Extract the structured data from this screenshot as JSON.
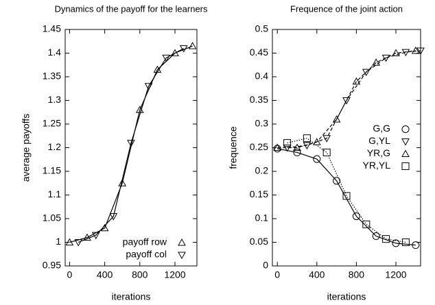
{
  "chart_data": [
    {
      "type": "line",
      "title": "Dynamics of the payoff for the learners",
      "xlabel": "iterations",
      "ylabel": "average payoffs",
      "xlim": [
        -50,
        1450
      ],
      "xticks": [
        0,
        400,
        800,
        1200
      ],
      "ylim": [
        0.95,
        1.45
      ],
      "yticks": [
        0.95,
        1,
        1.05,
        1.1,
        1.15,
        1.2,
        1.25,
        1.3,
        1.35,
        1.4,
        1.45
      ],
      "legend": "lower right",
      "series": [
        {
          "name": "payoff row",
          "color": "#000000",
          "marker": "triangle-up",
          "dash": "solid",
          "x": [
            0,
            200,
            400,
            600,
            800,
            1000,
            1200,
            1400
          ],
          "values": [
            1.0,
            1.01,
            1.03,
            1.125,
            1.28,
            1.365,
            1.4,
            1.415
          ]
        },
        {
          "name": "payoff col",
          "color": "#000000",
          "marker": "triangle-down",
          "dash": "solid",
          "x": [
            100,
            300,
            500,
            700,
            900,
            1100,
            1300
          ],
          "values": [
            1.0,
            1.015,
            1.055,
            1.21,
            1.33,
            1.39,
            1.41
          ]
        }
      ]
    },
    {
      "type": "line",
      "title": "Frequence of the joint action",
      "xlabel": "iterations",
      "ylabel": "frequence",
      "xlim": [
        -50,
        1450
      ],
      "xticks": [
        0,
        400,
        800,
        1200
      ],
      "ylim": [
        0,
        0.5
      ],
      "yticks": [
        0,
        0.05,
        0.1,
        0.15,
        0.2,
        0.25,
        0.3,
        0.35,
        0.4,
        0.45,
        0.5
      ],
      "legend": "center right",
      "series": [
        {
          "name": "G,G",
          "color": "#000000",
          "marker": "circle",
          "dash": "solid",
          "x": [
            0,
            200,
            400,
            600,
            800,
            1000,
            1200,
            1400
          ],
          "values": [
            0.248,
            0.24,
            0.226,
            0.18,
            0.105,
            0.063,
            0.048,
            0.044
          ]
        },
        {
          "name": "G,YL",
          "color": "#000000",
          "marker": "triangle-down",
          "dash": "dashed",
          "x": [
            100,
            300,
            500,
            700,
            900,
            1100,
            1300,
            1450
          ],
          "values": [
            0.25,
            0.255,
            0.27,
            0.35,
            0.41,
            0.44,
            0.452,
            0.455
          ]
        },
        {
          "name": "YR,G",
          "color": "#000000",
          "marker": "triangle-up",
          "dash": "dashed",
          "x": [
            0,
            200,
            400,
            600,
            800,
            1000,
            1200,
            1400
          ],
          "values": [
            0.25,
            0.25,
            0.262,
            0.31,
            0.39,
            0.43,
            0.45,
            0.455
          ]
        },
        {
          "name": "YR,YL",
          "color": "#000000",
          "marker": "square",
          "dash": "dotted",
          "x": [
            100,
            300,
            500,
            700,
            900,
            1100,
            1300
          ],
          "values": [
            0.26,
            0.27,
            0.24,
            0.148,
            0.088,
            0.057,
            0.05
          ]
        }
      ]
    }
  ]
}
